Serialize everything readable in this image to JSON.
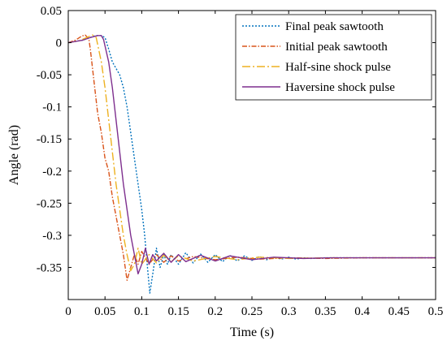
{
  "chart_data": {
    "type": "line",
    "title": "",
    "xlabel": "Time (s)",
    "ylabel": "Angle (rad)",
    "xlim": [
      0,
      0.5
    ],
    "ylim": [
      -0.4,
      0.05
    ],
    "xticks": [
      0,
      0.05,
      0.1,
      0.15,
      0.2,
      0.25,
      0.3,
      0.35,
      0.4,
      0.45,
      0.5
    ],
    "xtick_labels": [
      "0",
      "0.05",
      "0.1",
      "0.15",
      "0.2",
      "0.25",
      "0.3",
      "0.35",
      "0.4",
      "0.45",
      "0.5"
    ],
    "yticks": [
      0.05,
      0,
      -0.05,
      -0.1,
      -0.15,
      -0.2,
      -0.25,
      -0.3,
      -0.35
    ],
    "ytick_labels": [
      "0.05",
      "0",
      "-0.05",
      "-0.1",
      "-0.15",
      "-0.2",
      "-0.25",
      "-0.3",
      "-0.35"
    ],
    "grid": false,
    "legend_position": "top-right",
    "series": [
      {
        "name": "Final peak sawtooth",
        "color": "#0072BD",
        "dash": "dotted",
        "points": [
          [
            0,
            0
          ],
          [
            0.01,
            0.002
          ],
          [
            0.02,
            0.004
          ],
          [
            0.03,
            0.008
          ],
          [
            0.038,
            0.011
          ],
          [
            0.045,
            0.011
          ],
          [
            0.05,
            0.008
          ],
          [
            0.055,
            -0.01
          ],
          [
            0.06,
            -0.03
          ],
          [
            0.065,
            -0.04
          ],
          [
            0.07,
            -0.05
          ],
          [
            0.075,
            -0.07
          ],
          [
            0.08,
            -0.1
          ],
          [
            0.085,
            -0.14
          ],
          [
            0.09,
            -0.18
          ],
          [
            0.095,
            -0.22
          ],
          [
            0.1,
            -0.26
          ],
          [
            0.104,
            -0.3
          ],
          [
            0.107,
            -0.34
          ],
          [
            0.111,
            -0.39
          ],
          [
            0.115,
            -0.36
          ],
          [
            0.12,
            -0.32
          ],
          [
            0.125,
            -0.35
          ],
          [
            0.13,
            -0.33
          ],
          [
            0.135,
            -0.345
          ],
          [
            0.14,
            -0.33
          ],
          [
            0.15,
            -0.345
          ],
          [
            0.16,
            -0.327
          ],
          [
            0.17,
            -0.343
          ],
          [
            0.18,
            -0.329
          ],
          [
            0.19,
            -0.342
          ],
          [
            0.2,
            -0.33
          ],
          [
            0.21,
            -0.341
          ],
          [
            0.22,
            -0.331
          ],
          [
            0.23,
            -0.34
          ],
          [
            0.24,
            -0.332
          ],
          [
            0.25,
            -0.339
          ],
          [
            0.26,
            -0.333
          ],
          [
            0.27,
            -0.338
          ],
          [
            0.28,
            -0.334
          ],
          [
            0.29,
            -0.337
          ],
          [
            0.3,
            -0.334
          ],
          [
            0.31,
            -0.337
          ],
          [
            0.32,
            -0.335
          ],
          [
            0.33,
            -0.336
          ],
          [
            0.35,
            -0.335
          ],
          [
            0.4,
            -0.335
          ],
          [
            0.45,
            -0.335
          ],
          [
            0.5,
            -0.335
          ]
        ]
      },
      {
        "name": "Initial peak sawtooth",
        "color": "#D95319",
        "dash": "dashdot",
        "points": [
          [
            0,
            0
          ],
          [
            0.01,
            0.004
          ],
          [
            0.018,
            0.01
          ],
          [
            0.023,
            0.012
          ],
          [
            0.028,
            0.006
          ],
          [
            0.03,
            -0.01
          ],
          [
            0.035,
            -0.06
          ],
          [
            0.04,
            -0.11
          ],
          [
            0.045,
            -0.14
          ],
          [
            0.05,
            -0.18
          ],
          [
            0.055,
            -0.2
          ],
          [
            0.06,
            -0.24
          ],
          [
            0.065,
            -0.27
          ],
          [
            0.07,
            -0.3
          ],
          [
            0.075,
            -0.33
          ],
          [
            0.08,
            -0.37
          ],
          [
            0.085,
            -0.35
          ],
          [
            0.09,
            -0.33
          ],
          [
            0.095,
            -0.345
          ],
          [
            0.1,
            -0.325
          ],
          [
            0.11,
            -0.345
          ],
          [
            0.12,
            -0.33
          ],
          [
            0.13,
            -0.342
          ],
          [
            0.14,
            -0.332
          ],
          [
            0.15,
            -0.34
          ],
          [
            0.17,
            -0.333
          ],
          [
            0.2,
            -0.338
          ],
          [
            0.23,
            -0.334
          ],
          [
            0.26,
            -0.337
          ],
          [
            0.3,
            -0.335
          ],
          [
            0.35,
            -0.336
          ],
          [
            0.4,
            -0.335
          ],
          [
            0.5,
            -0.335
          ]
        ]
      },
      {
        "name": "Half-sine shock pulse",
        "color": "#EDB120",
        "dash": "dashdot-long",
        "points": [
          [
            0,
            0
          ],
          [
            0.015,
            0.003
          ],
          [
            0.025,
            0.008
          ],
          [
            0.033,
            0.012
          ],
          [
            0.038,
            0.008
          ],
          [
            0.045,
            -0.03
          ],
          [
            0.05,
            -0.07
          ],
          [
            0.055,
            -0.12
          ],
          [
            0.06,
            -0.17
          ],
          [
            0.065,
            -0.22
          ],
          [
            0.07,
            -0.26
          ],
          [
            0.075,
            -0.3
          ],
          [
            0.08,
            -0.33
          ],
          [
            0.085,
            -0.355
          ],
          [
            0.09,
            -0.345
          ],
          [
            0.095,
            -0.32
          ],
          [
            0.1,
            -0.345
          ],
          [
            0.11,
            -0.33
          ],
          [
            0.12,
            -0.343
          ],
          [
            0.13,
            -0.331
          ],
          [
            0.14,
            -0.341
          ],
          [
            0.15,
            -0.332
          ],
          [
            0.17,
            -0.34
          ],
          [
            0.2,
            -0.333
          ],
          [
            0.23,
            -0.338
          ],
          [
            0.26,
            -0.334
          ],
          [
            0.3,
            -0.336
          ],
          [
            0.35,
            -0.335
          ],
          [
            0.4,
            -0.335
          ],
          [
            0.5,
            -0.335
          ]
        ]
      },
      {
        "name": "Haversine shock pulse",
        "color": "#7E2F8E",
        "dash": "solid",
        "points": [
          [
            0,
            0
          ],
          [
            0.02,
            0.004
          ],
          [
            0.03,
            0.008
          ],
          [
            0.04,
            0.011
          ],
          [
            0.045,
            0.011
          ],
          [
            0.048,
            0.005
          ],
          [
            0.055,
            -0.03
          ],
          [
            0.06,
            -0.07
          ],
          [
            0.065,
            -0.12
          ],
          [
            0.07,
            -0.17
          ],
          [
            0.075,
            -0.22
          ],
          [
            0.08,
            -0.26
          ],
          [
            0.085,
            -0.3
          ],
          [
            0.09,
            -0.33
          ],
          [
            0.095,
            -0.36
          ],
          [
            0.1,
            -0.345
          ],
          [
            0.105,
            -0.32
          ],
          [
            0.11,
            -0.345
          ],
          [
            0.115,
            -0.33
          ],
          [
            0.12,
            -0.34
          ],
          [
            0.13,
            -0.328
          ],
          [
            0.14,
            -0.342
          ],
          [
            0.15,
            -0.33
          ],
          [
            0.16,
            -0.341
          ],
          [
            0.18,
            -0.331
          ],
          [
            0.2,
            -0.34
          ],
          [
            0.22,
            -0.332
          ],
          [
            0.25,
            -0.338
          ],
          [
            0.28,
            -0.334
          ],
          [
            0.32,
            -0.336
          ],
          [
            0.36,
            -0.335
          ],
          [
            0.4,
            -0.335
          ],
          [
            0.5,
            -0.335
          ]
        ]
      }
    ]
  }
}
